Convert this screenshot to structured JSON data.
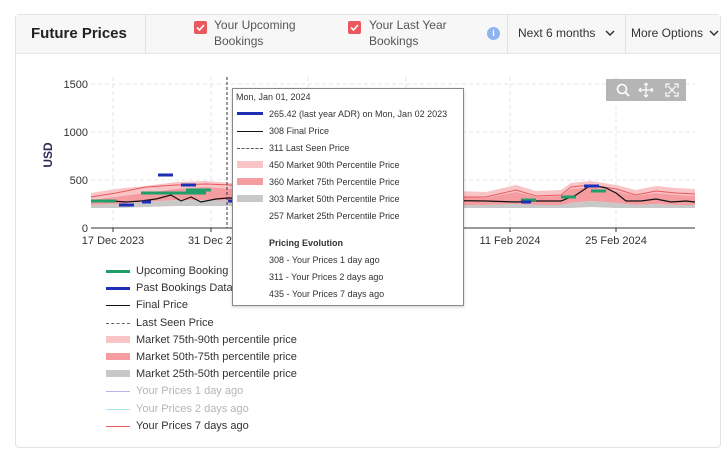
{
  "header": {
    "title": "Future Prices",
    "checkbox_upcoming": {
      "line1": "Your Upcoming",
      "line2": "Bookings",
      "checked": true
    },
    "checkbox_last_year": {
      "line1": "Your Last Year",
      "line2": "Bookings",
      "checked": true
    },
    "period_dropdown": "Next 6 months",
    "more_options": "More Options"
  },
  "chart": {
    "ylabel": "USD",
    "yticks": [
      "1500",
      "1000",
      "500",
      "0"
    ],
    "xticks": [
      "17 Dec 2023",
      "31 Dec 2",
      "11 Feb 2024",
      "25 Feb 2024"
    ]
  },
  "tooltip": {
    "date": "Mon, Jan 01, 2024",
    "rows": [
      {
        "text": "265.42 (last year ADR) on Mon, Jan 02 2023",
        "swatch": "#1e2fb5",
        "style": "thick"
      },
      {
        "text": "308 Final Price",
        "swatch": "#111111",
        "style": "thin"
      },
      {
        "text": "311 Last Seen Price",
        "swatch": "#555555",
        "style": "dashed"
      },
      {
        "text": "450 Market 90th Percentile Price",
        "swatch": "#f8c4c6",
        "style": "band"
      },
      {
        "text": "360 Market 75th Percentile Price",
        "swatch": "#f49ca0",
        "style": "band"
      },
      {
        "text": "303 Market 50th Percentile Price",
        "swatch": "#c8c8c8",
        "style": "band"
      },
      {
        "text": "257 Market 25th Percentile Price",
        "swatch": "#ffffff",
        "style": "none"
      }
    ],
    "evolution_title": "Pricing Evolution",
    "evolution": [
      "308 - Your Prices 1 day ago",
      "311 - Your Prices 2 days ago",
      "435 - Your Prices 7 days ago"
    ]
  },
  "legend": [
    {
      "label": "Upcoming Booking",
      "color": "#1f9e6a",
      "style": "thick"
    },
    {
      "label": "Past Bookings Data",
      "color": "#1e2fb5",
      "style": "thick"
    },
    {
      "label": "Final Price",
      "color": "#111111",
      "style": "thin"
    },
    {
      "label": "Last Seen Price",
      "color": "#666666",
      "style": "dashed"
    },
    {
      "label": "Market 75th-90th percentile price",
      "color": "#f8c4c6",
      "style": "band"
    },
    {
      "label": "Market 50th-75th percentile price",
      "color": "#f49ca0",
      "style": "band"
    },
    {
      "label": "Market 25th-50th percentile price",
      "color": "#c8c8c8",
      "style": "band"
    },
    {
      "label": "Your Prices 1 day ago",
      "color": "#b9b3ee",
      "style": "thin",
      "muted": true
    },
    {
      "label": "Your Prices 2 days ago",
      "color": "#a8e4ef",
      "style": "thin",
      "muted": true
    },
    {
      "label": "Your Prices 7 days ago",
      "color": "#e8585e",
      "style": "thin"
    }
  ],
  "colors": {
    "accent": "#e8585e",
    "info": "#8fb3ef"
  }
}
